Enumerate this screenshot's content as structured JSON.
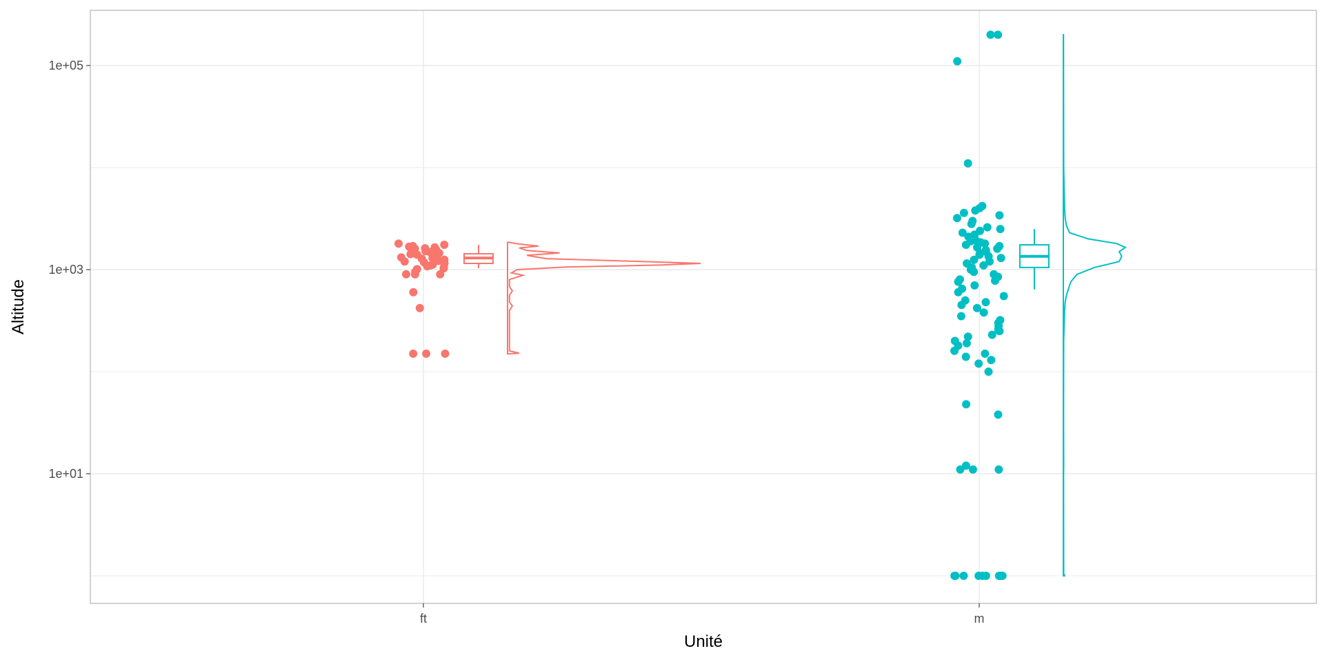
{
  "chart_data": {
    "type": "scatter",
    "variant": "raincloud (jittered points + boxplot + density) per category",
    "xlabel": "Unité",
    "ylabel": "Altitude",
    "y_scale": "log10",
    "ylim": [
      0.7,
      300000
    ],
    "y_ticks": [
      10,
      1000,
      100000
    ],
    "y_tick_labels": [
      "1e+01",
      "1e+03",
      "1e+05"
    ],
    "categories": [
      "ft",
      "m"
    ],
    "grid": true,
    "legend": "none",
    "colors": {
      "ft": "#F8766D",
      "m": "#00BFC4",
      "panel_border": "#b3b3b3",
      "grid": "#e5e5e5"
    },
    "series": [
      {
        "category": "ft",
        "box": {
          "min": 1030,
          "q1": 1150,
          "median": 1300,
          "q3": 1430,
          "max": 1750
        },
        "points": [
          1800,
          1750,
          1700,
          1680,
          1650,
          1620,
          1600,
          1580,
          1550,
          1520,
          1500,
          1480,
          1450,
          1420,
          1400,
          1380,
          1350,
          1320,
          1300,
          1280,
          1250,
          1220,
          1200,
          1180,
          1150,
          1120,
          1100,
          1080,
          1050,
          1030,
          1010,
          950,
          900,
          900,
          900,
          600,
          420,
          150,
          150,
          150
        ],
        "density": [
          {
            "y": 150,
            "d": 0.02
          },
          {
            "y": 152,
            "d": 0.06
          },
          {
            "y": 160,
            "d": 0.01
          },
          {
            "y": 400,
            "d": 0.01
          },
          {
            "y": 440,
            "d": 0.025
          },
          {
            "y": 480,
            "d": 0.01
          },
          {
            "y": 560,
            "d": 0.01
          },
          {
            "y": 620,
            "d": 0.025
          },
          {
            "y": 680,
            "d": 0.01
          },
          {
            "y": 800,
            "d": 0.01
          },
          {
            "y": 880,
            "d": 0.08
          },
          {
            "y": 930,
            "d": 0.02
          },
          {
            "y": 1000,
            "d": 0.05
          },
          {
            "y": 1060,
            "d": 0.3
          },
          {
            "y": 1110,
            "d": 0.8
          },
          {
            "y": 1150,
            "d": 1.0
          },
          {
            "y": 1200,
            "d": 0.7
          },
          {
            "y": 1280,
            "d": 0.2
          },
          {
            "y": 1380,
            "d": 0.1
          },
          {
            "y": 1460,
            "d": 0.27
          },
          {
            "y": 1540,
            "d": 0.1
          },
          {
            "y": 1630,
            "d": 0.06
          },
          {
            "y": 1700,
            "d": 0.16
          },
          {
            "y": 1780,
            "d": 0.06
          },
          {
            "y": 1850,
            "d": 0.01
          }
        ]
      },
      {
        "category": "m",
        "box": {
          "min": 640,
          "q1": 1050,
          "median": 1350,
          "q3": 1750,
          "max": 2500
        },
        "points": [
          200000,
          200000,
          110000,
          11000,
          4200,
          4000,
          3800,
          3600,
          3400,
          3200,
          3000,
          2800,
          2600,
          2500,
          2400,
          2300,
          2200,
          2100,
          2000,
          1950,
          1900,
          1850,
          1800,
          1750,
          1700,
          1650,
          1600,
          1550,
          1500,
          1450,
          1400,
          1350,
          1300,
          1250,
          1200,
          1150,
          1100,
          1050,
          1000,
          950,
          900,
          850,
          800,
          780,
          760,
          700,
          650,
          600,
          550,
          500,
          480,
          450,
          420,
          380,
          350,
          320,
          300,
          280,
          260,
          250,
          230,
          220,
          200,
          190,
          180,
          160,
          150,
          140,
          130,
          120,
          100,
          48,
          38,
          12,
          11,
          11,
          11,
          1,
          1,
          1,
          1,
          1,
          1,
          1,
          1,
          1,
          1
        ],
        "density": [
          {
            "y": 1,
            "d": 0.02
          },
          {
            "y": 1.05,
            "d": 0.005
          },
          {
            "y": 10,
            "d": 0.003
          },
          {
            "y": 12,
            "d": 0.006
          },
          {
            "y": 40,
            "d": 0.003
          },
          {
            "y": 200,
            "d": 0.006
          },
          {
            "y": 400,
            "d": 0.02
          },
          {
            "y": 480,
            "d": 0.03
          },
          {
            "y": 560,
            "d": 0.05
          },
          {
            "y": 640,
            "d": 0.08
          },
          {
            "y": 760,
            "d": 0.12
          },
          {
            "y": 900,
            "d": 0.22
          },
          {
            "y": 1050,
            "d": 0.5
          },
          {
            "y": 1200,
            "d": 0.9
          },
          {
            "y": 1350,
            "d": 0.94
          },
          {
            "y": 1500,
            "d": 0.9
          },
          {
            "y": 1650,
            "d": 1.0
          },
          {
            "y": 1800,
            "d": 0.86
          },
          {
            "y": 2000,
            "d": 0.4
          },
          {
            "y": 2300,
            "d": 0.1
          },
          {
            "y": 2700,
            "d": 0.05
          },
          {
            "y": 3200,
            "d": 0.03
          },
          {
            "y": 4000,
            "d": 0.02
          },
          {
            "y": 10000,
            "d": 0.005
          },
          {
            "y": 200000,
            "d": 0.002
          }
        ]
      }
    ]
  }
}
